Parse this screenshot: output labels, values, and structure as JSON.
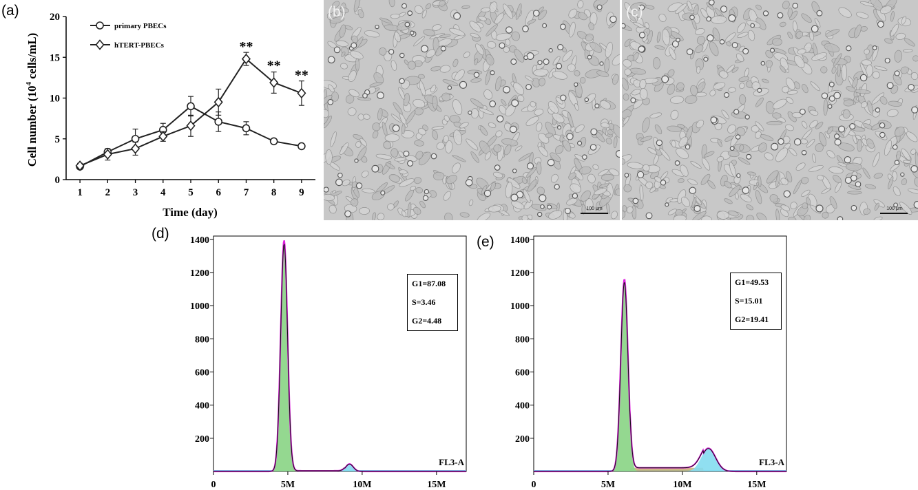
{
  "panel_labels": {
    "a": "(a)",
    "b": "(b)",
    "c": "(c)",
    "d": "(d)",
    "e": "(e)"
  },
  "micrograph_b": {
    "scale_bar": "100 μm"
  },
  "micrograph_c": {
    "scale_bar": "100 μm"
  },
  "chart_data": [
    {
      "id": "a",
      "type": "line",
      "xlabel": "Time (day)",
      "ylabel_pre": "Cell number (10",
      "ylabel_sup": "4",
      "ylabel_post": " cells/mL)",
      "x": [
        1,
        2,
        3,
        4,
        5,
        6,
        7,
        8,
        9
      ],
      "xlim": [
        0.5,
        9.5
      ],
      "ylim": [
        0,
        20
      ],
      "xticks": [
        "1",
        "2",
        "3",
        "4",
        "5",
        "6",
        "7",
        "8",
        "9"
      ],
      "yticks": [
        "0",
        "5",
        "10",
        "15",
        "20"
      ],
      "legend_position": "top-left",
      "series": [
        {
          "name": "primary PBECs",
          "marker": "circle",
          "values": [
            1.6,
            3.4,
            5.0,
            6.1,
            9.0,
            7.1,
            6.3,
            4.7,
            4.1
          ],
          "errors": [
            0.2,
            0.3,
            1.2,
            0.8,
            1.2,
            1.2,
            0.8,
            0.3,
            0.3
          ]
        },
        {
          "name": "hTERT-PBECs",
          "marker": "diamond",
          "values": [
            1.7,
            3.1,
            3.8,
            5.3,
            6.6,
            9.5,
            14.8,
            11.9,
            10.6
          ],
          "errors": [
            0.3,
            0.7,
            0.8,
            0.6,
            1.3,
            1.6,
            0.8,
            1.3,
            1.5
          ]
        }
      ],
      "annotations": [
        {
          "x": 7,
          "y": 16.1,
          "text": "**"
        },
        {
          "x": 8,
          "y": 13.8,
          "text": "**"
        },
        {
          "x": 9,
          "y": 12.6,
          "text": "**"
        }
      ]
    },
    {
      "id": "d",
      "type": "area",
      "channel_label": "FL3-A",
      "xlim": [
        0,
        17000000
      ],
      "ylim": [
        0,
        1420
      ],
      "xticks": [
        {
          "value": 0,
          "label": "0"
        },
        {
          "value": 5000000,
          "label": "5M"
        },
        {
          "value": 10000000,
          "label": "10M"
        },
        {
          "value": 15000000,
          "label": "15M"
        }
      ],
      "yticks": [
        200,
        400,
        600,
        800,
        1000,
        1200,
        1400
      ],
      "stats": [
        "G1=87.08",
        "S=3.46",
        "G2=4.48"
      ],
      "colors": {
        "g1": "#8ed68a",
        "s": "#c4a76a",
        "g2": "#84dcef",
        "fit": "#e020e0",
        "data": "#111111"
      },
      "g1_peak": {
        "center": 4750000,
        "sd": 230000,
        "height": 1395
      },
      "g2_peak": {
        "center": 9150000,
        "sd": 250000,
        "height": 45
      },
      "s_phase": {
        "start": 5300000,
        "end": 8800000,
        "height": 4
      }
    },
    {
      "id": "e",
      "type": "area",
      "channel_label": "FL3-A",
      "xlim": [
        0,
        17000000
      ],
      "ylim": [
        0,
        1420
      ],
      "xticks": [
        {
          "value": 0,
          "label": "0"
        },
        {
          "value": 5000000,
          "label": "5M"
        },
        {
          "value": 10000000,
          "label": "10M"
        },
        {
          "value": 15000000,
          "label": "15M"
        }
      ],
      "yticks": [
        200,
        400,
        600,
        800,
        1000,
        1200,
        1400
      ],
      "stats": [
        "G1=49.53",
        "S=15.01",
        "G2=19.41"
      ],
      "colors": {
        "g1": "#8ed68a",
        "s": "#c4a76a",
        "g2": "#84dcef",
        "fit": "#e020e0",
        "data": "#111111"
      },
      "g1_peak": {
        "center": 6100000,
        "sd": 240000,
        "height": 1160
      },
      "g2_peak": {
        "center": 11750000,
        "sd": 480000,
        "height": 140
      },
      "s_phase": {
        "start": 6500000,
        "end": 11400000,
        "height": 22
      }
    }
  ]
}
